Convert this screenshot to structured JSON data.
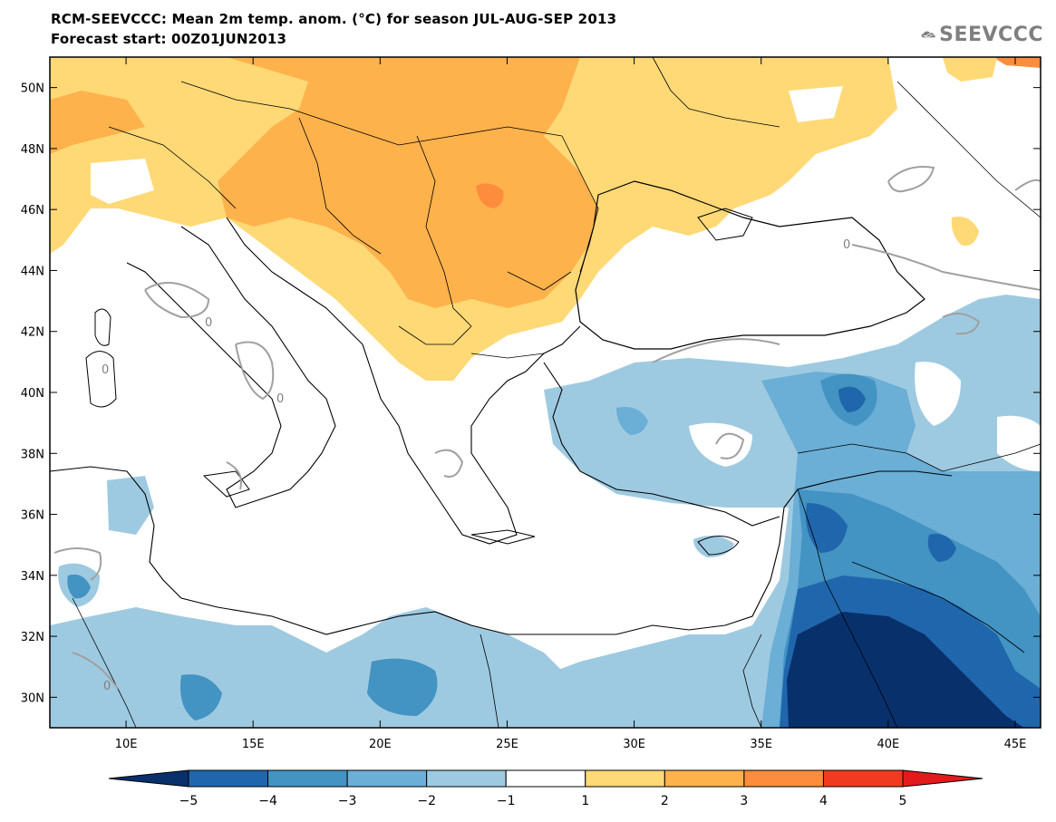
{
  "title": {
    "line1": "RCM-SEEVCCC: Mean 2m temp. anom. (°C) for season JUL-AUG-SEP 2013",
    "line2": "Forecast start: 00Z01JUN2013"
  },
  "logo": {
    "text": "SEEVCCC",
    "icon": "cloud-icon",
    "color": "#7f7f7f"
  },
  "map": {
    "lon_range": [
      7,
      46
    ],
    "lat_range": [
      29,
      51
    ],
    "x_ticks": [
      "10E",
      "15E",
      "20E",
      "25E",
      "30E",
      "35E",
      "40E",
      "45E"
    ],
    "x_tick_values": [
      10,
      15,
      20,
      25,
      30,
      35,
      40,
      45
    ],
    "y_ticks": [
      "50N",
      "48N",
      "46N",
      "44N",
      "42N",
      "40N",
      "38N",
      "36N",
      "34N",
      "32N",
      "30N"
    ],
    "y_tick_values": [
      50,
      48,
      46,
      44,
      42,
      40,
      38,
      36,
      34,
      32,
      30
    ],
    "contour_label": "0"
  },
  "colorbar": {
    "labels": [
      "−5",
      "−4",
      "−3",
      "−2",
      "−1",
      "1",
      "2",
      "3",
      "4",
      "5"
    ],
    "colors": [
      "#08306b",
      "#2066ac",
      "#4393c3",
      "#6baed6",
      "#9ecae1",
      "#ffffff",
      "#fed976",
      "#feb24c",
      "#fd8d3c",
      "#f03b20",
      "#d7301f"
    ],
    "under_color": "#08306b",
    "over_color": "#e31a1c"
  }
}
